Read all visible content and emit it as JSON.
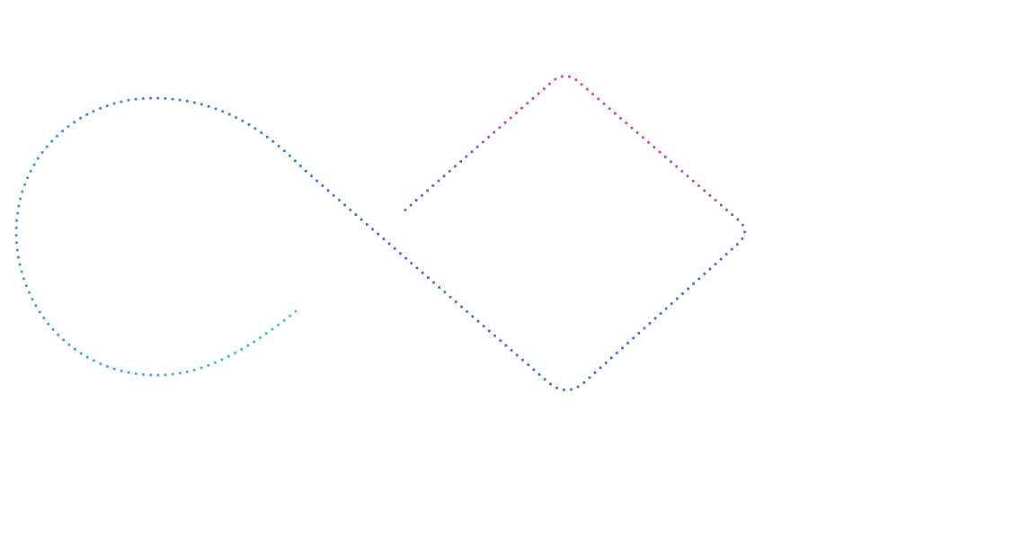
{
  "background": "#ffffff",
  "dotted_curve": {
    "shape": "infinity-loop",
    "gradient_stops": [
      {
        "at": 0.0,
        "color": "#18bccc"
      },
      {
        "at": 0.3,
        "color": "#1f78d6"
      },
      {
        "at": 0.45,
        "color": "#1f5fd0"
      },
      {
        "at": 0.7,
        "color": "#2a58d0"
      },
      {
        "at": 0.79,
        "color": "#8a3cc0"
      },
      {
        "at": 0.88,
        "color": "#f01ea0"
      },
      {
        "at": 1.0,
        "color": "#2a55d0"
      }
    ]
  }
}
